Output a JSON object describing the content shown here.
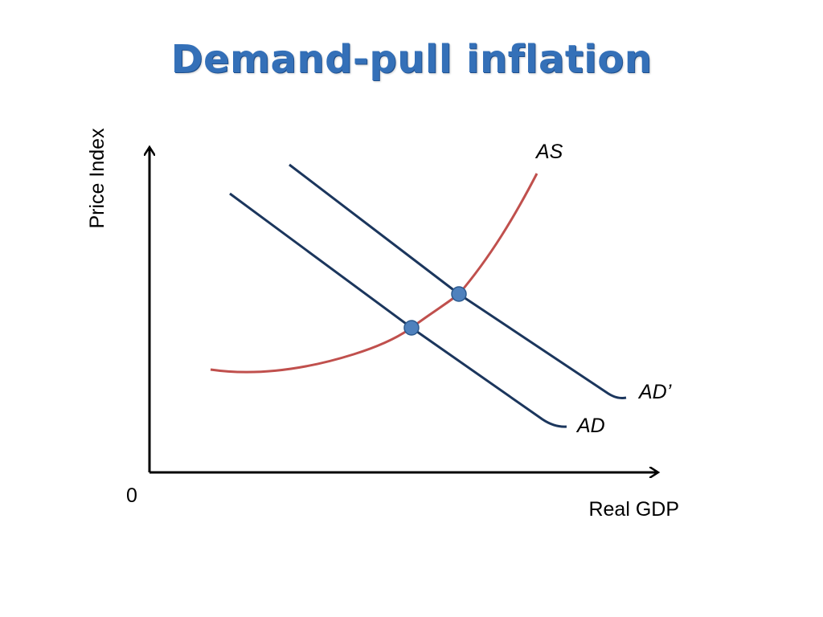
{
  "title": "Demand-pull inflation",
  "colors": {
    "title": "#3470b8",
    "demand_curves": "#1b365d",
    "supply_curve": "#c0504d",
    "equilibrium_points": "#4f81bd",
    "axes": "#000000"
  },
  "axes": {
    "y_label": "Price Index",
    "x_label": "Real GDP",
    "origin_label": "0"
  },
  "curves": {
    "supply_label": "AS",
    "demand_label": "AD",
    "demand_shifted_label": "AD’"
  },
  "equilibrium_points": [
    "initial-equilibrium",
    "new-equilibrium"
  ]
}
